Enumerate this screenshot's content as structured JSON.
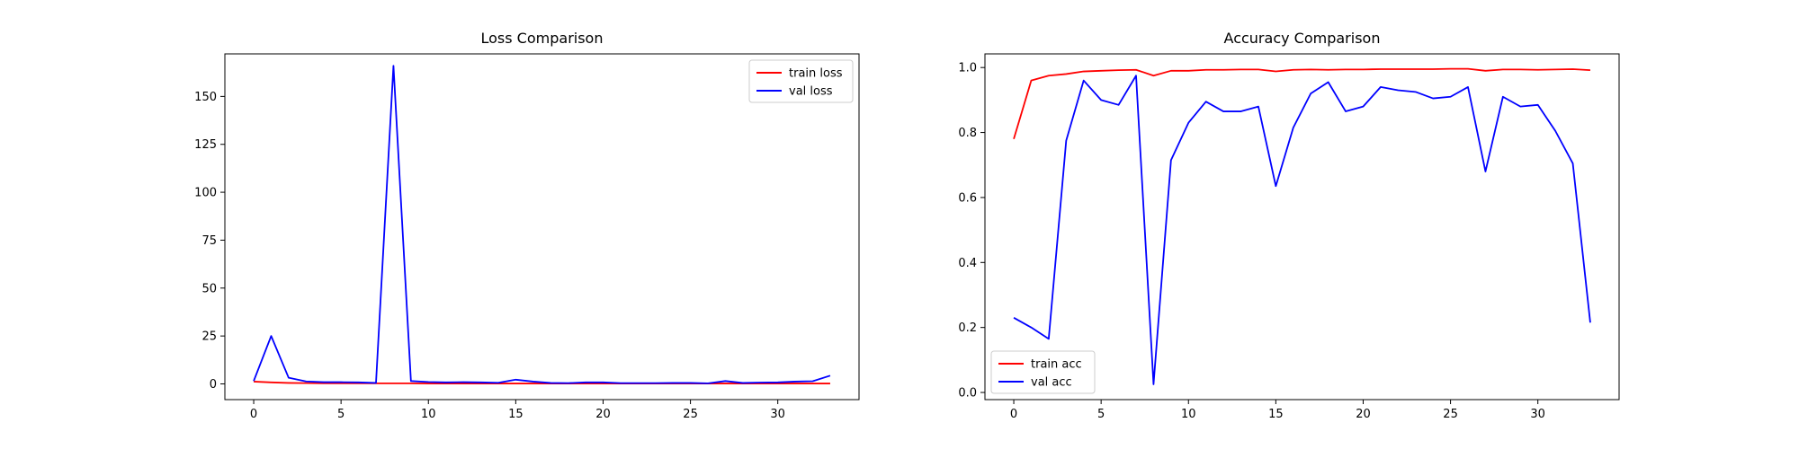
{
  "chart_data": [
    {
      "type": "line",
      "title": "Loss Comparison",
      "xlabel": "",
      "ylabel": "",
      "xlim": [
        -1.65,
        34.65
      ],
      "ylim": [
        -8.2,
        172.2
      ],
      "x_ticks": [
        0,
        5,
        10,
        15,
        20,
        25,
        30
      ],
      "y_ticks": [
        0,
        25,
        50,
        75,
        100,
        125,
        150
      ],
      "grid": false,
      "legend_position": "top-right",
      "x": [
        0,
        1,
        2,
        3,
        4,
        5,
        6,
        7,
        8,
        9,
        10,
        11,
        12,
        13,
        14,
        15,
        16,
        17,
        18,
        19,
        20,
        21,
        22,
        23,
        24,
        25,
        26,
        27,
        28,
        29,
        30,
        31,
        32,
        33
      ],
      "series": [
        {
          "name": "train loss",
          "color": "#ff0000",
          "values": [
            1.2,
            0.8,
            0.5,
            0.4,
            0.3,
            0.3,
            0.3,
            0.3,
            0.3,
            0.3,
            0.2,
            0.2,
            0.2,
            0.2,
            0.2,
            0.2,
            0.2,
            0.2,
            0.2,
            0.2,
            0.2,
            0.2,
            0.2,
            0.2,
            0.2,
            0.2,
            0.2,
            0.2,
            0.2,
            0.2,
            0.2,
            0.2,
            0.2,
            0.2
          ]
        },
        {
          "name": "val loss",
          "color": "#0000ff",
          "values": [
            1.5,
            25,
            3.2,
            1.3,
            0.9,
            0.9,
            0.8,
            0.5,
            166,
            1.5,
            1.0,
            0.8,
            0.9,
            0.8,
            0.6,
            2.2,
            1.2,
            0.5,
            0.4,
            0.8,
            0.8,
            0.4,
            0.4,
            0.4,
            0.5,
            0.5,
            0.3,
            1.5,
            0.5,
            0.7,
            0.8,
            1.2,
            1.4,
            4.3
          ]
        }
      ]
    },
    {
      "type": "line",
      "title": "Accuracy Comparison",
      "xlabel": "",
      "ylabel": "",
      "xlim": [
        -1.65,
        34.65
      ],
      "ylim": [
        -0.022,
        1.042
      ],
      "x_ticks": [
        0,
        5,
        10,
        15,
        20,
        25,
        30
      ],
      "y_ticks": [
        "0.0",
        "0.2",
        "0.4",
        "0.6",
        "0.8",
        "1.0"
      ],
      "grid": false,
      "legend_position": "bottom-left",
      "x": [
        0,
        1,
        2,
        3,
        4,
        5,
        6,
        7,
        8,
        9,
        10,
        11,
        12,
        13,
        14,
        15,
        16,
        17,
        18,
        19,
        20,
        21,
        22,
        23,
        24,
        25,
        26,
        27,
        28,
        29,
        30,
        31,
        32,
        33
      ],
      "series": [
        {
          "name": "train acc",
          "color": "#ff0000",
          "values": [
            0.78,
            0.96,
            0.975,
            0.98,
            0.988,
            0.99,
            0.992,
            0.993,
            0.975,
            0.99,
            0.99,
            0.993,
            0.993,
            0.994,
            0.994,
            0.988,
            0.993,
            0.994,
            0.993,
            0.994,
            0.994,
            0.995,
            0.995,
            0.995,
            0.995,
            0.996,
            0.996,
            0.99,
            0.994,
            0.994,
            0.993,
            0.994,
            0.995,
            0.992
          ]
        },
        {
          "name": "val acc",
          "color": "#0000ff",
          "values": [
            0.23,
            0.2,
            0.165,
            0.775,
            0.96,
            0.9,
            0.885,
            0.975,
            0.025,
            0.715,
            0.83,
            0.895,
            0.865,
            0.865,
            0.88,
            0.635,
            0.815,
            0.92,
            0.955,
            0.865,
            0.88,
            0.94,
            0.93,
            0.925,
            0.905,
            0.91,
            0.94,
            0.68,
            0.91,
            0.88,
            0.885,
            0.805,
            0.705,
            0.215
          ]
        }
      ]
    }
  ]
}
